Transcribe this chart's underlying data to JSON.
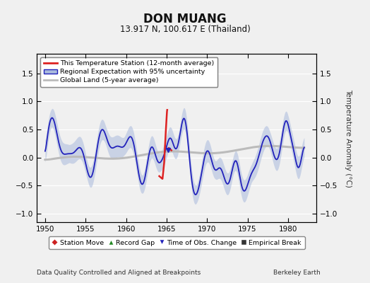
{
  "title": "DON MUANG",
  "subtitle": "13.917 N, 100.617 E (Thailand)",
  "xlabel_bottom": "Data Quality Controlled and Aligned at Breakpoints",
  "xlabel_right": "Berkeley Earth",
  "ylabel": "Temperature Anomaly (°C)",
  "xlim": [
    1949.0,
    1983.5
  ],
  "ylim": [
    -1.15,
    1.85
  ],
  "yticks": [
    -1,
    -0.5,
    0,
    0.5,
    1,
    1.5
  ],
  "xticks": [
    1950,
    1955,
    1960,
    1965,
    1970,
    1975,
    1980
  ],
  "bg_color": "#f0f0f0",
  "grid_color": "#ffffff",
  "blue_line_color": "#2222bb",
  "blue_fill_color": "#aabbdd",
  "blue_fill_alpha": 0.55,
  "gray_line_color": "#bbbbbb",
  "red_line_color": "#dd2222",
  "legend2_marker_colors": {
    "station_move": "#cc2222",
    "record_gap": "#228822",
    "time_obs": "#2222bb",
    "empirical": "#333333"
  }
}
